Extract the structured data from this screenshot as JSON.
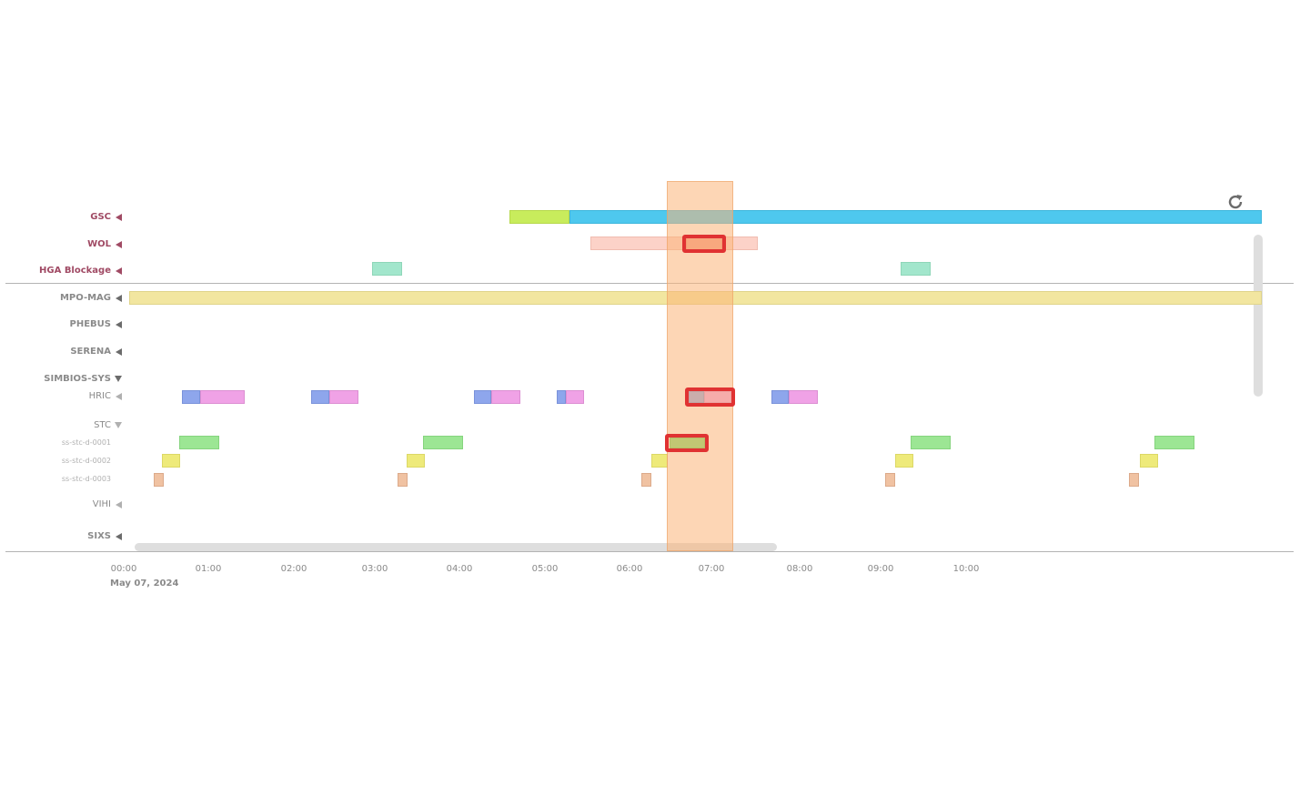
{
  "timeline": {
    "date": "May 07, 2024",
    "time_ticks": [
      "00:00",
      "01:00",
      "02:00",
      "03:00",
      "04:00",
      "05:00",
      "06:00",
      "07:00",
      "08:00",
      "09:00",
      "10:00"
    ],
    "colors": {
      "group_label": "#a04a64",
      "instrument_label": "#8a8a8a",
      "selection_window": "#fcb478",
      "highlight": "#e03232"
    },
    "rows": [
      {
        "label": "GSC",
        "kind": "group",
        "expander": "collapsed"
      },
      {
        "label": "WOL",
        "kind": "group",
        "expander": "collapsed"
      },
      {
        "label": "HGA Blockage",
        "kind": "group",
        "expander": "collapsed"
      },
      {
        "label": "MPO-MAG",
        "kind": "instrument",
        "expander": "collapsed"
      },
      {
        "label": "PHEBUS",
        "kind": "instrument",
        "expander": "collapsed"
      },
      {
        "label": "SERENA",
        "kind": "instrument",
        "expander": "collapsed"
      },
      {
        "label": "SIMBIOS-SYS",
        "kind": "instrument",
        "expander": "expanded"
      },
      {
        "label": "HRIC",
        "kind": "sub",
        "expander": "collapsed"
      },
      {
        "label": "STC",
        "kind": "sub",
        "expander": "expanded"
      },
      {
        "label": "ss-stc-d-0001",
        "kind": "detail",
        "expander": "none"
      },
      {
        "label": "ss-stc-d-0002",
        "kind": "detail",
        "expander": "none"
      },
      {
        "label": "ss-stc-d-0003",
        "kind": "detail",
        "expander": "none"
      },
      {
        "label": "VIHI",
        "kind": "sub",
        "expander": "collapsed"
      },
      {
        "label": "SIXS",
        "kind": "instrument",
        "expander": "collapsed"
      }
    ],
    "refresh_icon": "refresh-icon",
    "expand_icon": "triangle-left-icon",
    "collapse_icon": "triangle-down-icon"
  }
}
